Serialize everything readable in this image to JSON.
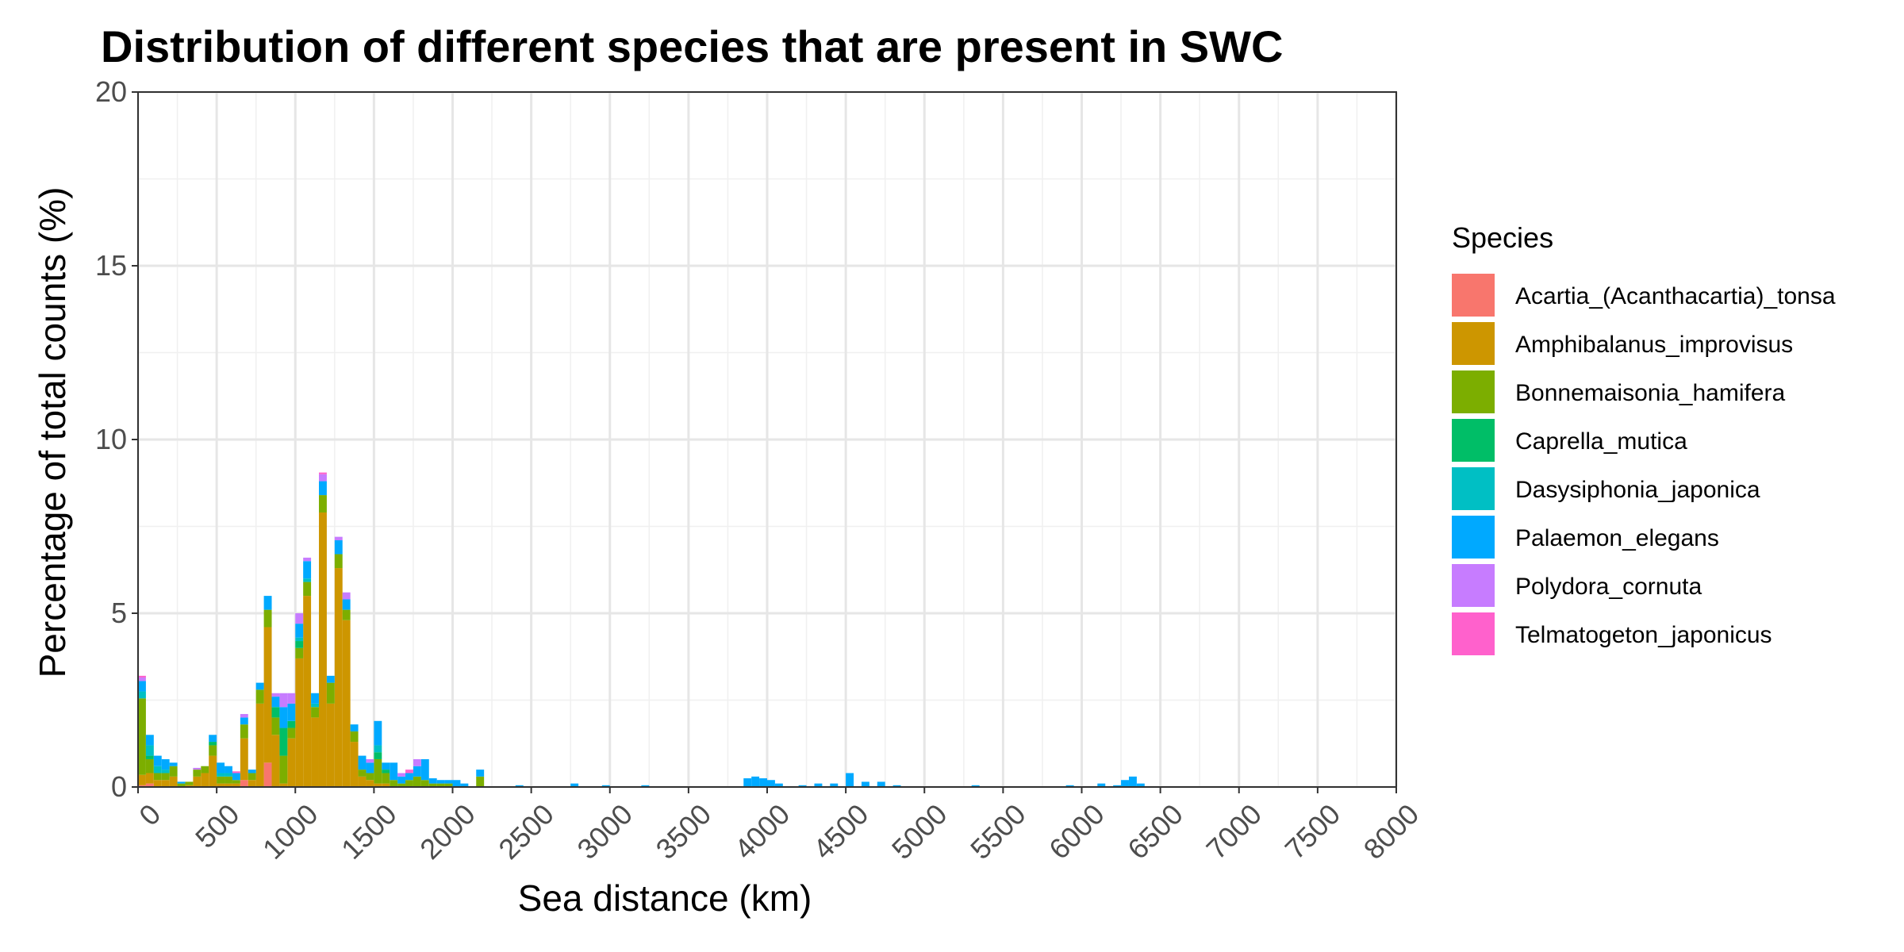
{
  "chart_data": {
    "type": "bar",
    "stacked": true,
    "title": "Distribution of different species that are present in SWC",
    "xlabel": "Sea distance (km)",
    "ylabel": "Percentage of total counts (%)",
    "xlim": [
      0,
      8000
    ],
    "ylim": [
      0,
      20
    ],
    "x_ticks": [
      0,
      500,
      1000,
      1500,
      2000,
      2500,
      3000,
      3500,
      4000,
      4500,
      5000,
      5500,
      6000,
      6500,
      7000,
      7500,
      8000
    ],
    "y_ticks": [
      0,
      5,
      10,
      15,
      20
    ],
    "grid": true,
    "bin_width_km": 50,
    "legend": {
      "title": "Species",
      "position": "right"
    },
    "series": [
      {
        "name": "Acartia_(Acanthacartia)_tonsa",
        "color": "#F8766D",
        "x": [
          0,
          50,
          800,
          650
        ],
        "values": [
          0.05,
          0.1,
          0.7,
          0.2
        ]
      },
      {
        "name": "Amphibalanus_improvisus",
        "color": "#CD9600",
        "x": [
          0,
          50,
          100,
          150,
          200,
          250,
          300,
          350,
          400,
          450,
          500,
          550,
          600,
          650,
          700,
          750,
          800,
          850,
          900,
          950,
          1000,
          1050,
          1100,
          1150,
          1200,
          1250,
          1300,
          1350,
          1400,
          1450,
          1500,
          1550
        ],
        "values": [
          0.3,
          0.3,
          0.2,
          0.2,
          0.3,
          0.0,
          0.05,
          0.3,
          0.4,
          0.9,
          0.1,
          0.1,
          0.1,
          1.2,
          0.2,
          2.4,
          3.9,
          1.5,
          0.1,
          1.4,
          3.7,
          5.5,
          2.0,
          7.9,
          2.4,
          6.3,
          4.8,
          1.3,
          0.3,
          0.2,
          0.1,
          0.1
        ]
      },
      {
        "name": "Bonnemaisonia_hamifera",
        "color": "#7CAE00",
        "x": [
          0,
          50,
          100,
          150,
          200,
          250,
          300,
          350,
          400,
          450,
          500,
          550,
          600,
          650,
          700,
          750,
          800,
          850,
          900,
          950,
          1000,
          1050,
          1100,
          1150,
          1200,
          1250,
          1300,
          1350,
          1400,
          1450,
          1500,
          1550,
          1600,
          1650,
          1700,
          1750,
          1800,
          1850,
          1900,
          1950,
          2150
        ],
        "values": [
          2.2,
          0.4,
          0.2,
          0.2,
          0.3,
          0.1,
          0.1,
          0.2,
          0.2,
          0.3,
          0.2,
          0.2,
          0.1,
          0.4,
          0.2,
          0.4,
          0.5,
          0.5,
          0.8,
          0.3,
          0.3,
          0.4,
          0.3,
          0.5,
          0.6,
          0.4,
          0.3,
          0.3,
          0.2,
          0.2,
          0.7,
          0.3,
          0.2,
          0.1,
          0.2,
          0.3,
          0.2,
          0.1,
          0.1,
          0.1,
          0.3
        ]
      },
      {
        "name": "Caprella_mutica",
        "color": "#00BE67",
        "x": [
          50,
          450,
          850,
          900,
          950,
          1000,
          1500,
          1550
        ],
        "values": [
          0.1,
          0.1,
          0.3,
          0.8,
          0.2,
          0.2,
          0.2,
          0.1
        ]
      },
      {
        "name": "Dasysiphonia_japonica",
        "color": "#00BFC4",
        "x": [
          0,
          50,
          100,
          150,
          500,
          550,
          1000,
          1050,
          1100,
          1500
        ],
        "values": [
          0.2,
          0.3,
          0.2,
          0.1,
          0.1,
          0.1,
          0.1,
          0.1,
          0.1,
          0.2
        ]
      },
      {
        "name": "Palaemon_elegans",
        "color": "#00A9FF",
        "x": [
          0,
          50,
          100,
          150,
          200,
          250,
          450,
          500,
          550,
          600,
          650,
          700,
          750,
          800,
          850,
          900,
          950,
          1000,
          1050,
          1100,
          1150,
          1200,
          1250,
          1300,
          1350,
          1400,
          1450,
          1500,
          1550,
          1600,
          1650,
          1700,
          1750,
          1800,
          1850,
          1900,
          1950,
          2000,
          2050,
          2150,
          2400,
          2750,
          2950,
          3200,
          3850,
          3900,
          3950,
          4000,
          4050,
          4200,
          4300,
          4400,
          4500,
          4600,
          4700,
          4800,
          5300,
          5900,
          6100,
          6200,
          6250,
          6300,
          6350
        ],
        "values": [
          0.3,
          0.3,
          0.3,
          0.3,
          0.1,
          0.05,
          0.2,
          0.3,
          0.2,
          0.2,
          0.2,
          0.1,
          0.2,
          0.4,
          0.3,
          0.6,
          0.5,
          0.4,
          0.5,
          0.3,
          0.4,
          0.2,
          0.4,
          0.3,
          0.2,
          0.4,
          0.3,
          0.7,
          0.2,
          0.5,
          0.2,
          0.2,
          0.3,
          0.6,
          0.15,
          0.1,
          0.1,
          0.2,
          0.1,
          0.2,
          0.05,
          0.1,
          0.05,
          0.05,
          0.25,
          0.3,
          0.25,
          0.2,
          0.1,
          0.05,
          0.1,
          0.1,
          0.4,
          0.15,
          0.15,
          0.05,
          0.05,
          0.05,
          0.1,
          0.05,
          0.2,
          0.3,
          0.1
        ]
      },
      {
        "name": "Polydora_cornuta",
        "color": "#C77CFF",
        "x": [
          0,
          350,
          650,
          850,
          900,
          950,
          1000,
          1050,
          1150,
          1250,
          1300,
          1450,
          1650,
          1750
        ],
        "values": [
          0.1,
          0.05,
          0.1,
          0.1,
          0.4,
          0.3,
          0.3,
          0.1,
          0.2,
          0.1,
          0.2,
          0.1,
          0.1,
          0.2
        ]
      },
      {
        "name": "Telmatogeton_japonicus",
        "color": "#FF61CC",
        "x": [
          0,
          600,
          1150,
          1700
        ],
        "values": [
          0.05,
          0.05,
          0.05,
          0.1
        ]
      }
    ]
  }
}
